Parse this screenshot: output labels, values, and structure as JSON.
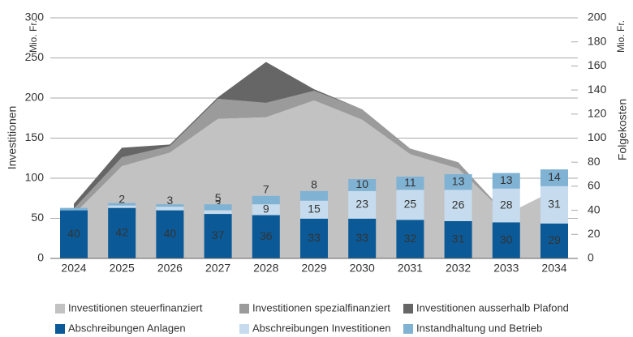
{
  "chart_data": {
    "type": "combo",
    "categories": [
      "2024",
      "2025",
      "2026",
      "2027",
      "2028",
      "2029",
      "2030",
      "2031",
      "2032",
      "2033",
      "2034"
    ],
    "y_label": "Investitionen",
    "y_unit": "Mio. Fr.",
    "y2_label": "Folgekosten",
    "y2_unit": "Mio. Fr.",
    "ylim": [
      0,
      300
    ],
    "yticks": [
      0,
      50,
      100,
      150,
      200,
      250,
      300
    ],
    "y2lim": [
      0,
      200
    ],
    "y2ticks": [
      0,
      20,
      40,
      60,
      80,
      100,
      120,
      140,
      160,
      180,
      200
    ],
    "grid": true,
    "series": [
      {
        "name": "Investitionen steuerfinanziert",
        "type": "area",
        "axis": "y",
        "color": "#c2c2c2",
        "values": [
          55,
          115,
          132,
          174,
          176,
          197,
          173,
          130,
          112,
          55,
          85
        ]
      },
      {
        "name": "Investitionen spezialfinanziert",
        "type": "area",
        "axis": "y",
        "color": "#9b9b9b",
        "values": [
          7,
          11,
          8,
          25,
          18,
          12,
          13,
          7,
          8,
          0,
          0
        ]
      },
      {
        "name": "Investitionen ausserhalb Plafond",
        "type": "area",
        "axis": "y",
        "color": "#666666",
        "values": [
          6,
          12,
          2,
          2,
          51,
          2,
          0,
          0,
          0,
          0,
          0
        ]
      },
      {
        "name": "Abschreibungen Anlagen",
        "type": "bar",
        "axis": "y2",
        "color": "#0b5a97",
        "values": [
          40,
          42,
          40,
          37,
          36,
          33,
          33,
          32,
          31,
          30,
          29
        ]
      },
      {
        "name": "Abschreibungen Investitionen",
        "type": "bar",
        "axis": "y2",
        "color": "#c6dcee",
        "values": [
          0,
          2,
          3,
          3,
          9,
          15,
          23,
          25,
          26,
          28,
          31
        ],
        "value_labels": [
          null,
          "2",
          "3",
          "3",
          "9",
          "15",
          "23",
          "25",
          "26",
          "28",
          "31"
        ]
      },
      {
        "name": "Instandhaltung und Betrieb",
        "type": "bar",
        "axis": "y2",
        "color": "#80b2d4",
        "values": [
          2,
          2,
          2,
          5,
          7,
          8,
          10,
          11,
          13,
          13,
          14
        ],
        "value_labels": [
          null,
          null,
          null,
          "5",
          "7",
          "8",
          "10",
          "11",
          "13",
          "13",
          "14"
        ]
      }
    ]
  }
}
